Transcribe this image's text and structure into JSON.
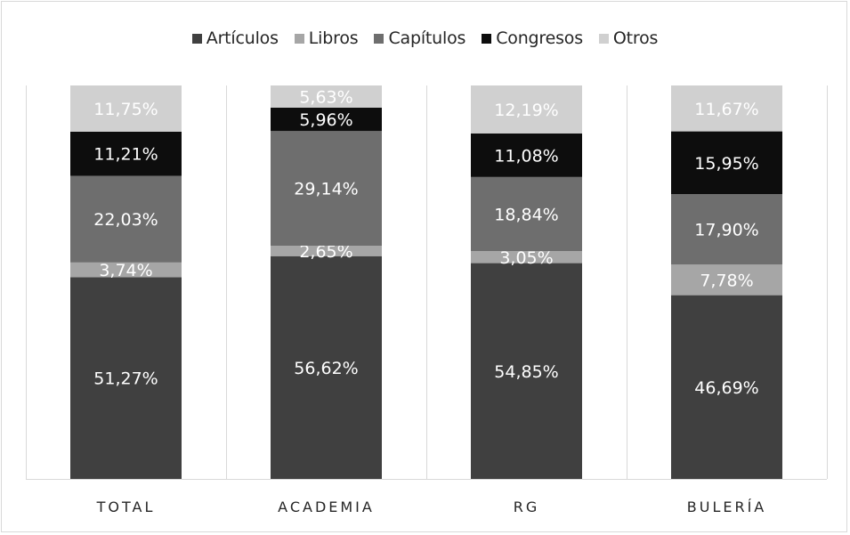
{
  "chart_data": {
    "type": "bar",
    "stacked": true,
    "categories": [
      "TOTAL",
      "ACADEMIA",
      "RG",
      "BULERÍA"
    ],
    "series": [
      {
        "name": "Artículos",
        "color": "#404040",
        "label_color": "#ffffff",
        "values": [
          51.27,
          56.62,
          54.85,
          46.69
        ],
        "labels": [
          "51,27%",
          "56,62%",
          "54,85%",
          "46,69%"
        ]
      },
      {
        "name": "Libros",
        "color": "#a6a6a6",
        "label_color": "#ffffff",
        "values": [
          3.74,
          2.65,
          3.05,
          7.78
        ],
        "labels": [
          "3,74%",
          "2,65%",
          "3,05%",
          "7,78%"
        ]
      },
      {
        "name": "Capítulos",
        "color": "#6e6e6e",
        "label_color": "#ffffff",
        "values": [
          22.03,
          29.14,
          18.84,
          17.9
        ],
        "labels": [
          "22,03%",
          "29,14%",
          "18,84%",
          "17,90%"
        ]
      },
      {
        "name": "Congresos",
        "color": "#0d0d0d",
        "label_color": "#ffffff",
        "values": [
          11.21,
          5.96,
          11.08,
          15.95
        ],
        "labels": [
          "11,21%",
          "5,96%",
          "11,08%",
          "15,95%"
        ]
      },
      {
        "name": "Otros",
        "color": "#d0d0d0",
        "label_color": "#ffffff",
        "values": [
          11.75,
          5.63,
          12.19,
          11.67
        ],
        "labels": [
          "11,75%",
          "5,63%",
          "12,19%",
          "11,67%"
        ]
      }
    ],
    "ylim": [
      0,
      100
    ],
    "legend_position": "top",
    "grid": false,
    "title": "",
    "xlabel": "",
    "ylabel": ""
  }
}
